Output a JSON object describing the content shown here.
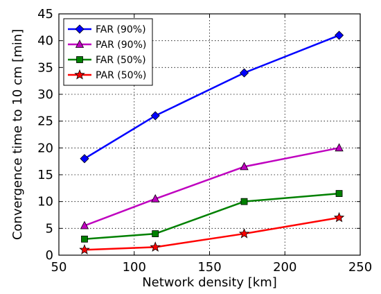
{
  "chart_data": {
    "type": "line",
    "xlabel": "Network density [km]",
    "ylabel": "Convergence time to 10 cm [min]",
    "xlim": [
      50,
      250
    ],
    "ylim": [
      0,
      45
    ],
    "xticks": [
      50,
      100,
      150,
      200,
      250
    ],
    "yticks": [
      0,
      5,
      10,
      15,
      20,
      25,
      30,
      35,
      40,
      45
    ],
    "grid": true,
    "legend_position": "top-left",
    "x": [
      67,
      114,
      173,
      236
    ],
    "series": [
      {
        "name": "FAR (90%)",
        "values": [
          18,
          26,
          34,
          41
        ],
        "color": "#0000ff",
        "marker": "diamond"
      },
      {
        "name": "PAR (90%)",
        "values": [
          5.5,
          10.5,
          16.5,
          20
        ],
        "color": "#bf00bf",
        "marker": "triangle"
      },
      {
        "name": "FAR (50%)",
        "values": [
          3,
          4,
          10,
          11.5
        ],
        "color": "#008000",
        "marker": "square"
      },
      {
        "name": "PAR (50%)",
        "values": [
          1,
          1.5,
          4,
          7
        ],
        "color": "#ff0000",
        "marker": "star"
      }
    ]
  }
}
